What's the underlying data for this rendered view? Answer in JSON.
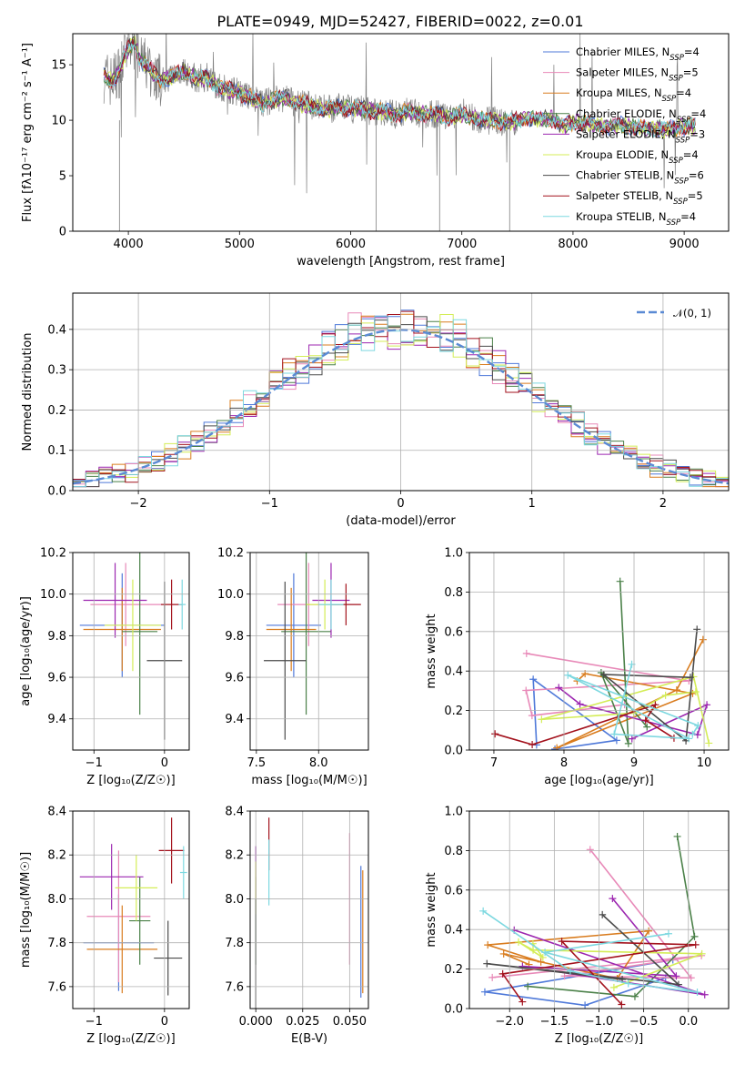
{
  "figure": {
    "title": "PLATE=0949, MJD=52427, FIBERID=0022, z=0.01"
  },
  "series_colors": [
    {
      "name": "Chabrier MILES",
      "nssp": "4",
      "color": "#4f79d9"
    },
    {
      "name": "Salpeter MILES",
      "nssp": "5",
      "color": "#e889b8"
    },
    {
      "name": "Kroupa MILES",
      "nssp": "4",
      "color": "#d97c1e"
    },
    {
      "name": "Chabrier ELODIE",
      "nssp": "4",
      "color": "#4a8048"
    },
    {
      "name": "Salpeter ELODIE",
      "nssp": "3",
      "color": "#9c26b0"
    },
    {
      "name": "Kroupa ELODIE",
      "nssp": "4",
      "color": "#d4ed57"
    },
    {
      "name": "Chabrier STELIB",
      "nssp": "6",
      "color": "#4a4a4a"
    },
    {
      "name": "Salpeter STELIB",
      "nssp": "5",
      "color": "#a3121d"
    },
    {
      "name": "Kroupa STELIB",
      "nssp": "4",
      "color": "#7dd8e0"
    }
  ],
  "chart_data": [
    {
      "id": "spectrum",
      "type": "line",
      "xlabel": "wavelength [Angstrom, rest frame]",
      "ylabel": "Flux [fλ10⁻¹⁷ erg cm⁻² s⁻¹ A⁻¹]",
      "xlim": [
        3500,
        9400
      ],
      "ylim": [
        0,
        17.8
      ],
      "xticks": [
        "4000",
        "5000",
        "6000",
        "7000",
        "8000",
        "9000"
      ],
      "yticks": [
        "0",
        "5",
        "10",
        "15"
      ],
      "legend_position": "top-right",
      "data_color": "#7f7f7f",
      "data": {
        "x": [
          3780,
          3850,
          3920,
          4000,
          4050,
          4100,
          4200,
          4300,
          4400,
          4500,
          4600,
          4700,
          4800,
          4900,
          5000,
          5100,
          5200,
          5300,
          5400,
          5500,
          5600,
          5700,
          5800,
          5900,
          6000,
          6100,
          6200,
          6300,
          6400,
          6500,
          6600,
          6700,
          6800,
          6900,
          7000,
          7100,
          7200,
          7300,
          7400,
          7500,
          7600,
          7700,
          7800,
          7900,
          8000,
          8100,
          8200,
          8300,
          8400,
          8500,
          8600,
          8700,
          8800,
          8900,
          9000,
          9100
        ],
        "y": [
          14.0,
          13.5,
          14.5,
          16.5,
          17.0,
          15.5,
          14.5,
          13.5,
          14.0,
          14.5,
          13.8,
          13.8,
          13.0,
          12.8,
          12.5,
          12.0,
          11.5,
          11.8,
          12.0,
          11.6,
          11.4,
          11.2,
          11.0,
          11.2,
          11.0,
          11.0,
          10.8,
          10.8,
          10.5,
          10.8,
          10.6,
          10.5,
          10.5,
          10.2,
          10.5,
          10.2,
          10.0,
          10.0,
          9.8,
          10.0,
          10.2,
          10.0,
          10.2,
          9.5,
          9.8,
          9.7,
          9.6,
          9.4,
          9.6,
          9.4,
          9.3,
          9.3,
          9.2,
          9.3,
          9.4,
          9.5
        ]
      }
    },
    {
      "id": "residual_hist",
      "type": "line",
      "xlabel": "(data-model)/error",
      "ylabel": "Normed distribution",
      "xlim": [
        -2.5,
        2.5
      ],
      "ylim": [
        0,
        0.49
      ],
      "xticks": [
        "−2",
        "−1",
        "0",
        "1",
        "2"
      ],
      "yticks": [
        "0.0",
        "0.1",
        "0.2",
        "0.3",
        "0.4"
      ],
      "grid": true,
      "legend_position": "top-right",
      "reference": {
        "label": "𝒩(0, 1)",
        "color": "#5a8ad4"
      },
      "bin_edges": [
        -2.5,
        -2.4,
        -2.3,
        -2.2,
        -2.1,
        -2.0,
        -1.9,
        -1.8,
        -1.7,
        -1.6,
        -1.5,
        -1.4,
        -1.3,
        -1.2,
        -1.1,
        -1.0,
        -0.9,
        -0.8,
        -0.7,
        -0.6,
        -0.5,
        -0.4,
        -0.3,
        -0.2,
        -0.1,
        0.0,
        0.1,
        0.2,
        0.3,
        0.4,
        0.5,
        0.6,
        0.7,
        0.8,
        0.9,
        1.0,
        1.1,
        1.2,
        1.3,
        1.4,
        1.5,
        1.6,
        1.7,
        1.8,
        1.9,
        2.0,
        2.1,
        2.2,
        2.3,
        2.4,
        2.5
      ]
    },
    {
      "id": "age_vs_Z",
      "type": "scatter",
      "xlabel": "Z [log₁₀(Z/Z☉)]",
      "ylabel": "age  [log₁₀(age/yr)]",
      "xlim": [
        -1.3,
        0.35
      ],
      "ylim": [
        9.25,
        10.2
      ],
      "xticks": [
        "−1",
        "0"
      ],
      "yticks": [
        "9.4",
        "9.6",
        "9.8",
        "10.0",
        "10.2"
      ],
      "grid": true,
      "points": [
        {
          "x": -0.6,
          "y": 9.85,
          "xerr": 0.6,
          "yerr": 0.25
        },
        {
          "x": -0.55,
          "y": 9.95,
          "xerr": 0.5,
          "yerr": 0.2
        },
        {
          "x": -0.6,
          "y": 9.83,
          "xerr": 0.55,
          "yerr": 0.2
        },
        {
          "x": -0.35,
          "y": 9.82,
          "xerr": 0.25,
          "yerr": 0.4
        },
        {
          "x": -0.7,
          "y": 9.97,
          "xerr": 0.45,
          "yerr": 0.18
        },
        {
          "x": -0.45,
          "y": 9.85,
          "xerr": 0.4,
          "yerr": 0.22
        },
        {
          "x": 0.0,
          "y": 9.68,
          "xerr": 0.25,
          "yerr": 0.38
        },
        {
          "x": 0.1,
          "y": 9.95,
          "xerr": 0.15,
          "yerr": 0.12
        },
        {
          "x": 0.25,
          "y": 9.95,
          "xerr": 0.05,
          "yerr": 0.12
        }
      ]
    },
    {
      "id": "age_vs_mass",
      "type": "scatter",
      "xlabel": "mass [log₁₀(M/M☉)]",
      "ylabel": "",
      "xlim": [
        7.45,
        8.4
      ],
      "ylim": [
        9.25,
        10.2
      ],
      "xticks": [
        "7.5",
        "8.0"
      ],
      "yticks": [
        "9.4",
        "9.6",
        "9.8",
        "10.0",
        "10.2"
      ],
      "grid": true,
      "points": [
        {
          "x": 7.8,
          "y": 9.85,
          "xerr": 0.22,
          "yerr": 0.25
        },
        {
          "x": 7.92,
          "y": 9.95,
          "xerr": 0.25,
          "yerr": 0.2
        },
        {
          "x": 7.78,
          "y": 9.83,
          "xerr": 0.2,
          "yerr": 0.2
        },
        {
          "x": 7.9,
          "y": 9.82,
          "xerr": 0.2,
          "yerr": 0.4
        },
        {
          "x": 8.1,
          "y": 9.97,
          "xerr": 0.15,
          "yerr": 0.18
        },
        {
          "x": 8.05,
          "y": 9.95,
          "xerr": 0.15,
          "yerr": 0.12
        },
        {
          "x": 7.73,
          "y": 9.68,
          "xerr": 0.17,
          "yerr": 0.38
        },
        {
          "x": 8.22,
          "y": 9.95,
          "xerr": 0.12,
          "yerr": 0.1
        },
        {
          "x": 8.1,
          "y": 9.95,
          "xerr": 0.1,
          "yerr": 0.12
        }
      ]
    },
    {
      "id": "weight_vs_age",
      "type": "line",
      "xlabel": "age  [log₁₀(age/yr)]",
      "ylabel": "mass weight",
      "xlim": [
        6.65,
        10.35
      ],
      "ylim": [
        0,
        1.0
      ],
      "xticks": [
        "7",
        "8",
        "9",
        "10"
      ],
      "yticks": [
        "0.0",
        "0.2",
        "0.4",
        "0.6",
        "0.8",
        "1.0"
      ],
      "grid": true
    },
    {
      "id": "mass_vs_Z",
      "type": "scatter",
      "xlabel": "Z [log₁₀(Z/Z☉)]",
      "ylabel": "mass [log₁₀(M/M☉)]",
      "xlim": [
        -1.3,
        0.35
      ],
      "ylim": [
        7.5,
        8.4
      ],
      "xticks": [
        "−1",
        "0"
      ],
      "yticks": [
        "7.6",
        "7.8",
        "8.0",
        "8.2",
        "8.4"
      ],
      "grid": true,
      "points": [
        {
          "x": -0.65,
          "y": 7.8,
          "xerr": 0.5,
          "yerr": 0.22
        },
        {
          "x": -0.65,
          "y": 7.92,
          "xerr": 0.45,
          "yerr": 0.3
        },
        {
          "x": -0.6,
          "y": 7.77,
          "xerr": 0.5,
          "yerr": 0.2
        },
        {
          "x": -0.35,
          "y": 7.9,
          "xerr": 0.15,
          "yerr": 0.2
        },
        {
          "x": -0.75,
          "y": 8.1,
          "xerr": 0.45,
          "yerr": 0.15
        },
        {
          "x": -0.4,
          "y": 8.05,
          "xerr": 0.3,
          "yerr": 0.15
        },
        {
          "x": 0.05,
          "y": 7.73,
          "xerr": 0.2,
          "yerr": 0.17
        },
        {
          "x": 0.1,
          "y": 8.22,
          "xerr": 0.18,
          "yerr": 0.15
        },
        {
          "x": 0.27,
          "y": 8.12,
          "xerr": 0.05,
          "yerr": 0.12
        }
      ]
    },
    {
      "id": "mass_vs_ebv",
      "type": "scatter",
      "xlabel": "E(B-V)",
      "ylabel": "",
      "xlim": [
        -0.003,
        0.06
      ],
      "ylim": [
        7.5,
        8.4
      ],
      "xticks": [
        "0.000",
        "0.025",
        "0.050"
      ],
      "yticks": [
        "7.6",
        "7.8",
        "8.0",
        "8.2",
        "8.4"
      ],
      "grid": true,
      "points": [
        {
          "x": 0.056,
          "y": 7.85,
          "xerr": 0,
          "yerr": 0.3
        },
        {
          "x": 0.05,
          "y": 8.0,
          "xerr": 0,
          "yerr": 0.3
        },
        {
          "x": 0.057,
          "y": 7.85,
          "xerr": 0,
          "yerr": 0.28
        },
        {
          "x": 0.0,
          "y": 7.9,
          "xerr": 0,
          "yerr": 0.2
        },
        {
          "x": 0.0,
          "y": 8.12,
          "xerr": 0,
          "yerr": 0.12
        },
        {
          "x": 0.0,
          "y": 8.05,
          "xerr": 0,
          "yerr": 0.12
        },
        {
          "x": 0.0,
          "y": 7.75,
          "xerr": 0,
          "yerr": 0.25
        },
        {
          "x": 0.007,
          "y": 8.25,
          "xerr": 0,
          "yerr": 0.12
        },
        {
          "x": 0.007,
          "y": 8.12,
          "xerr": 0,
          "yerr": 0.15
        }
      ]
    },
    {
      "id": "weight_vs_Z",
      "type": "line",
      "xlabel": "Z [log₁₀(Z/Z☉)]",
      "ylabel": "mass weight",
      "xlim": [
        -2.45,
        0.45
      ],
      "ylim": [
        0,
        1.0
      ],
      "xticks": [
        "−2.0",
        "−1.5",
        "−1.0",
        "−0.5",
        "0.0"
      ],
      "yticks": [
        "0.0",
        "0.2",
        "0.4",
        "0.6",
        "0.8",
        "1.0"
      ],
      "grid": true
    }
  ]
}
